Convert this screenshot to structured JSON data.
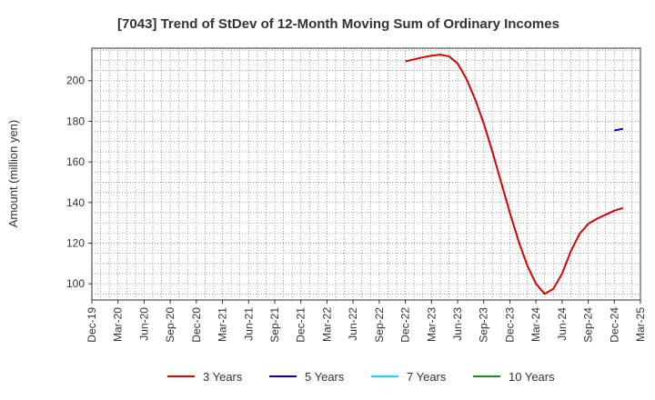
{
  "chart_data": {
    "type": "line",
    "title": "[7043]  Trend of StDev of 12-Month Moving Sum of Ordinary Incomes",
    "xlabel": "",
    "ylabel": "Amount (million yen)",
    "x_tick_labels": [
      "Dec-19",
      "Mar-20",
      "Jun-20",
      "Sep-20",
      "Dec-20",
      "Mar-21",
      "Jun-21",
      "Sep-21",
      "Dec-21",
      "Mar-22",
      "Jun-22",
      "Sep-22",
      "Dec-22",
      "Mar-23",
      "Jun-23",
      "Sep-23",
      "Dec-23",
      "Mar-24",
      "Jun-24",
      "Sep-24",
      "Dec-24",
      "Mar-25"
    ],
    "y_ticks": [
      100,
      120,
      140,
      160,
      180,
      200
    ],
    "ylim": [
      92,
      216
    ],
    "grid": true,
    "legend_position": "bottom",
    "series": [
      {
        "name": "3 Years",
        "color": "#dd0000",
        "points": [
          [
            "Dec-22",
            209.5
          ],
          [
            "Jan-23",
            210.5
          ],
          [
            "Feb-23",
            211.5
          ],
          [
            "Mar-23",
            212.3
          ],
          [
            "Apr-23",
            212.8
          ],
          [
            "May-23",
            212.0
          ],
          [
            "Jun-23",
            208.5
          ],
          [
            "Jul-23",
            201.0
          ],
          [
            "Aug-23",
            191.0
          ],
          [
            "Sep-23",
            179.0
          ],
          [
            "Oct-23",
            165.0
          ],
          [
            "Nov-23",
            150.0
          ],
          [
            "Dec-23",
            135.0
          ],
          [
            "Jan-24",
            121.0
          ],
          [
            "Feb-24",
            109.0
          ],
          [
            "Mar-24",
            100.0
          ],
          [
            "Apr-24",
            95.0
          ],
          [
            "May-24",
            97.5
          ],
          [
            "Jun-24",
            105.0
          ],
          [
            "Jul-24",
            116.0
          ],
          [
            "Aug-24",
            124.5
          ],
          [
            "Sep-24",
            129.5
          ],
          [
            "Oct-24",
            132.0
          ],
          [
            "Nov-24",
            134.0
          ],
          [
            "Dec-24",
            136.0
          ],
          [
            "Jan-25",
            137.3
          ]
        ]
      },
      {
        "name": "5 Years",
        "color": "#0000cc",
        "points": [
          [
            "Dec-24",
            175.5
          ],
          [
            "Jan-25",
            176.3
          ]
        ]
      },
      {
        "name": "7 Years",
        "color": "#00e5ee",
        "points": []
      },
      {
        "name": "10 Years",
        "color": "#228b22",
        "points": []
      }
    ]
  }
}
